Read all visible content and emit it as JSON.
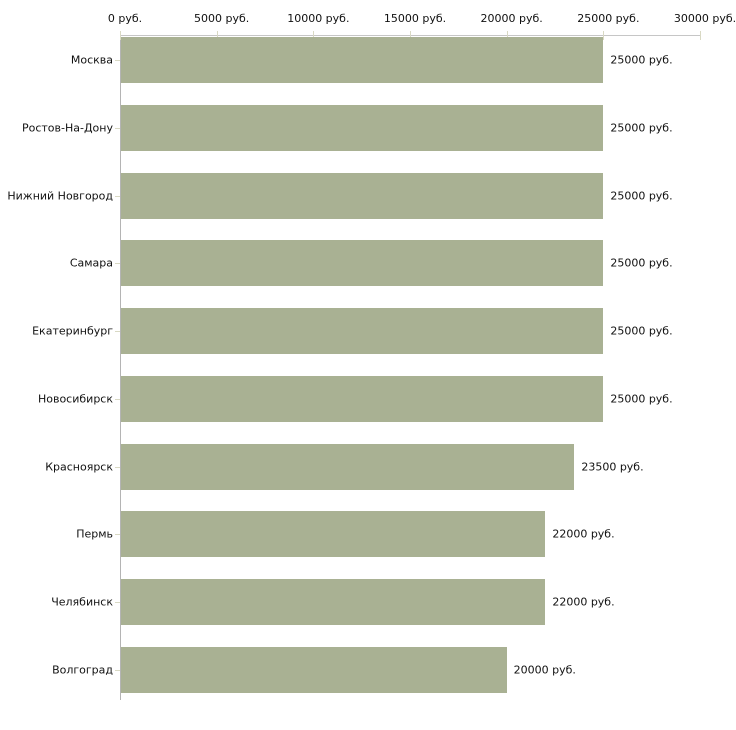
{
  "chart_data": {
    "type": "bar",
    "orientation": "horizontal",
    "unit": "руб.",
    "categories": [
      "Москва",
      "Ростов-На-Дону",
      "Нижний Новгород",
      "Самара",
      "Екатеринбург",
      "Новосибирск",
      "Красноярск",
      "Пермь",
      "Челябинск",
      "Волгоград"
    ],
    "values": [
      25000,
      25000,
      25000,
      25000,
      25000,
      25000,
      23500,
      22000,
      22000,
      20000
    ],
    "value_labels": [
      "25000 руб.",
      "25000 руб.",
      "25000 руб.",
      "25000 руб.",
      "25000 руб.",
      "25000 руб.",
      "23500 руб.",
      "22000 руб.",
      "22000 руб.",
      "20000 руб."
    ],
    "xlim": [
      0,
      30000
    ],
    "x_ticks": [
      0,
      5000,
      10000,
      15000,
      20000,
      25000,
      30000
    ],
    "x_tick_labels": [
      "0 руб.",
      "5000 руб.",
      "10000 руб.",
      "15000 руб.",
      "20000 руб.",
      "25000 руб.",
      "30000 руб."
    ],
    "grid": false,
    "colors": {
      "bar": "#a9b193",
      "x_axis_line": "#c6c6c6",
      "y_axis_line": "#b4b4b4",
      "tick": "#d9d9c4",
      "text": "#111111",
      "background": "#ffffff"
    }
  }
}
